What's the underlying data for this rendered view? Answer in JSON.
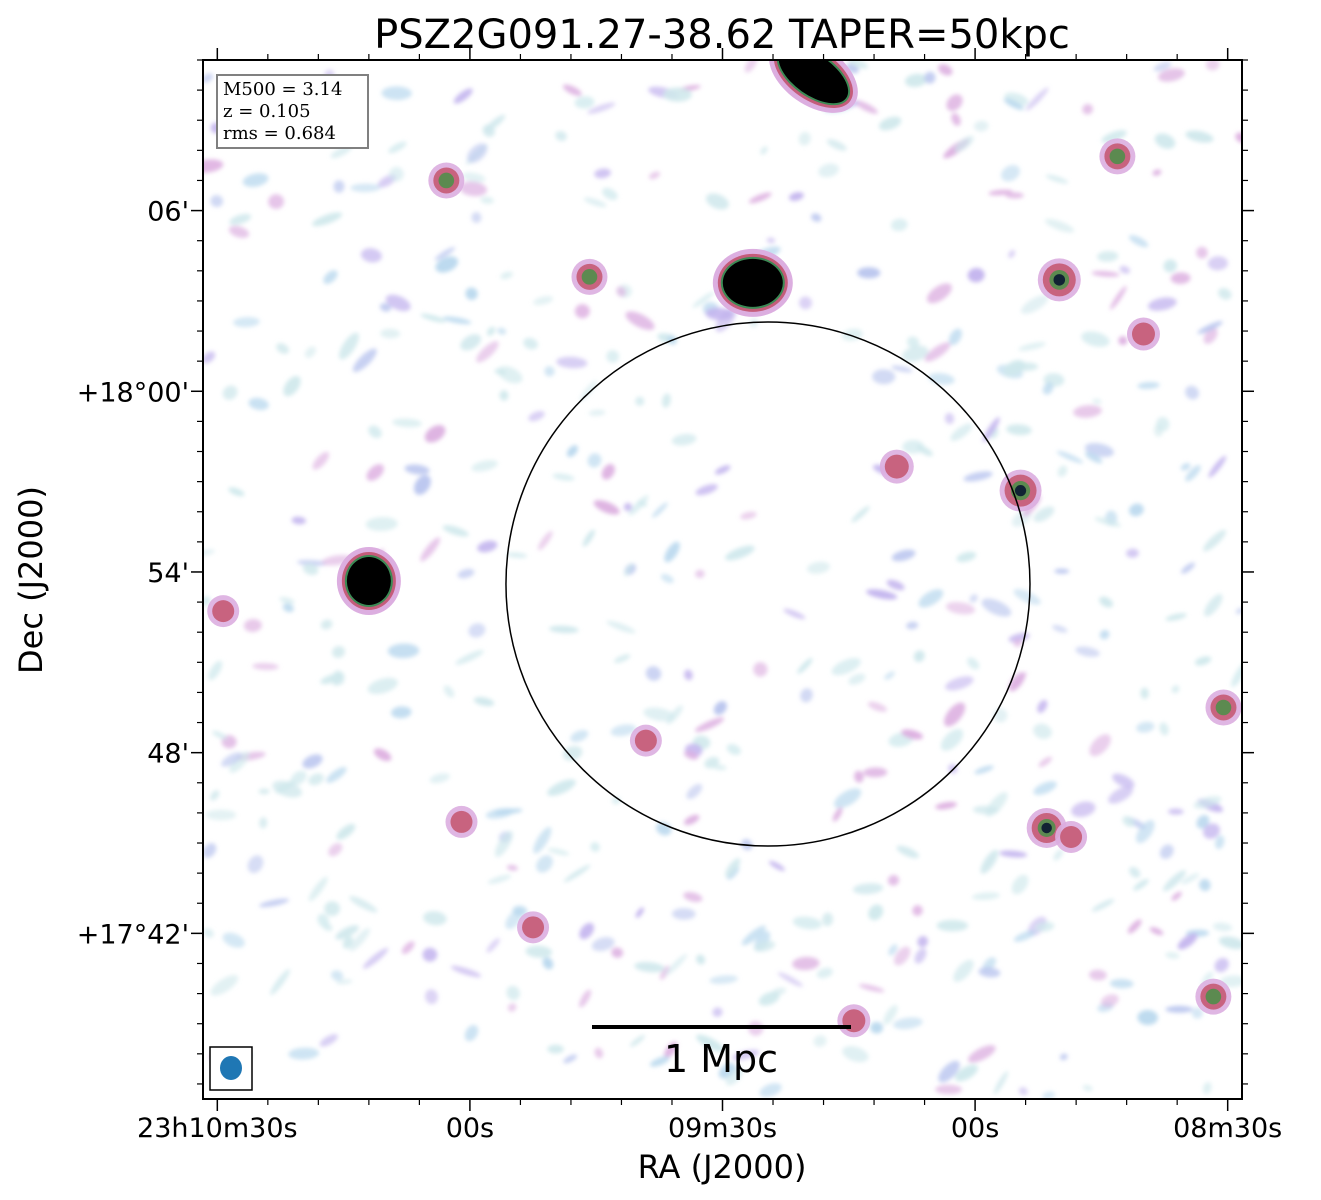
{
  "chart_data": {
    "type": "heatmap",
    "title": "PSZ2G091.27-38.62 TAPER=50kpc",
    "xlabel": "RA (J2000)",
    "ylabel": "Dec (J2000)",
    "x_ticks": [
      "23h10m30s",
      "00s",
      "09m30s",
      "00s",
      "08m30s"
    ],
    "x_ticks_seconds": [
      90,
      60,
      30,
      0,
      -30
    ],
    "y_ticks": [
      "06'",
      "+18°00'",
      "54'",
      "48'",
      "+17°42'"
    ],
    "y_ticks_arcmin": [
      6,
      0,
      -6,
      -12,
      -18
    ],
    "xlim_ra_seconds_from_23h09m00s": [
      91.7,
      -31.7
    ],
    "ylim_dec_arcmin_from_18d00m": [
      -23.5,
      11.0
    ],
    "colormap": "cubehelix-like (white → light blue → violet → red → green → black)",
    "info_box": {
      "lines": [
        "M500 = 3.14",
        "z = 0.105",
        "rms = 0.684"
      ]
    },
    "scalebar_label": "1 Mpc",
    "circle_center": {
      "ra_s": 24.6,
      "dec_arcmin": -6.4
    },
    "circle_radius_arcmin": 8.7,
    "beam": {
      "shape": "ellipse",
      "color": "#1f77b4"
    },
    "sources": [
      {
        "ra_s": 19.2,
        "dec_arcmin": 10.5,
        "strength": 1.0,
        "shape": "elongated"
      },
      {
        "ra_s": 26.4,
        "dec_arcmin": 3.6,
        "strength": 1.0,
        "shape": "compact"
      },
      {
        "ra_s": 72.0,
        "dec_arcmin": -6.3,
        "strength": 1.0,
        "shape": "compact"
      },
      {
        "ra_s": -10.0,
        "dec_arcmin": 3.7,
        "strength": 0.95
      },
      {
        "ra_s": -5.4,
        "dec_arcmin": -3.3,
        "strength": 0.9
      },
      {
        "ra_s": -8.5,
        "dec_arcmin": -14.5,
        "strength": 0.8
      },
      {
        "ra_s": 62.8,
        "dec_arcmin": 7.0,
        "strength": 0.6
      },
      {
        "ra_s": 45.8,
        "dec_arcmin": 3.8,
        "strength": 0.6
      },
      {
        "ra_s": -16.9,
        "dec_arcmin": 7.8,
        "strength": 0.6
      },
      {
        "ra_s": 9.3,
        "dec_arcmin": -2.5,
        "strength": 0.5
      },
      {
        "ra_s": -20.0,
        "dec_arcmin": 1.9,
        "strength": 0.45
      },
      {
        "ra_s": -29.5,
        "dec_arcmin": -10.5,
        "strength": 0.6
      },
      {
        "ra_s": -28.3,
        "dec_arcmin": -20.1,
        "strength": 0.6
      },
      {
        "ra_s": 89.3,
        "dec_arcmin": -7.3,
        "strength": 0.4
      },
      {
        "ra_s": 39.1,
        "dec_arcmin": -11.6,
        "strength": 0.4
      },
      {
        "ra_s": 14.4,
        "dec_arcmin": -20.9,
        "strength": 0.45
      },
      {
        "ra_s": -11.4,
        "dec_arcmin": -14.8,
        "strength": 0.4
      },
      {
        "ra_s": 52.5,
        "dec_arcmin": -17.8,
        "strength": 0.4
      },
      {
        "ra_s": 61.0,
        "dec_arcmin": -14.3,
        "strength": 0.4
      }
    ]
  }
}
